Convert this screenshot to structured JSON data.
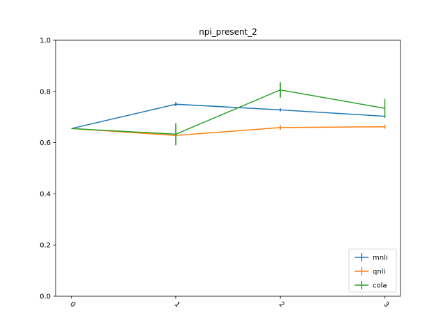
{
  "chart_data": {
    "type": "line",
    "title": "npi_present_2",
    "xlabel": "",
    "ylabel": "",
    "x": [
      "0",
      "1",
      "2",
      "3"
    ],
    "x_tick_rotation": 45,
    "ylim": [
      0,
      1.0
    ],
    "yticks": [
      "0.0",
      "0.2",
      "0.4",
      "0.6",
      "0.8",
      "1.0"
    ],
    "grid": false,
    "legend": {
      "placement": "bottom-right",
      "entries": [
        "mnli",
        "qnli",
        "cola"
      ]
    },
    "series": [
      {
        "name": "mnli",
        "color": "#1f77b4",
        "values": [
          0.655,
          0.75,
          0.728,
          0.703
        ],
        "errors": [
          0.0,
          0.008,
          0.006,
          0.005
        ]
      },
      {
        "name": "qnli",
        "color": "#ff7f0e",
        "values": [
          0.655,
          0.628,
          0.659,
          0.662
        ],
        "errors": [
          0.0,
          0.007,
          0.009,
          0.008
        ]
      },
      {
        "name": "cola",
        "color": "#2ca02c",
        "values": [
          0.655,
          0.633,
          0.806,
          0.734
        ],
        "errors": [
          0.0,
          0.043,
          0.03,
          0.037
        ]
      }
    ]
  }
}
